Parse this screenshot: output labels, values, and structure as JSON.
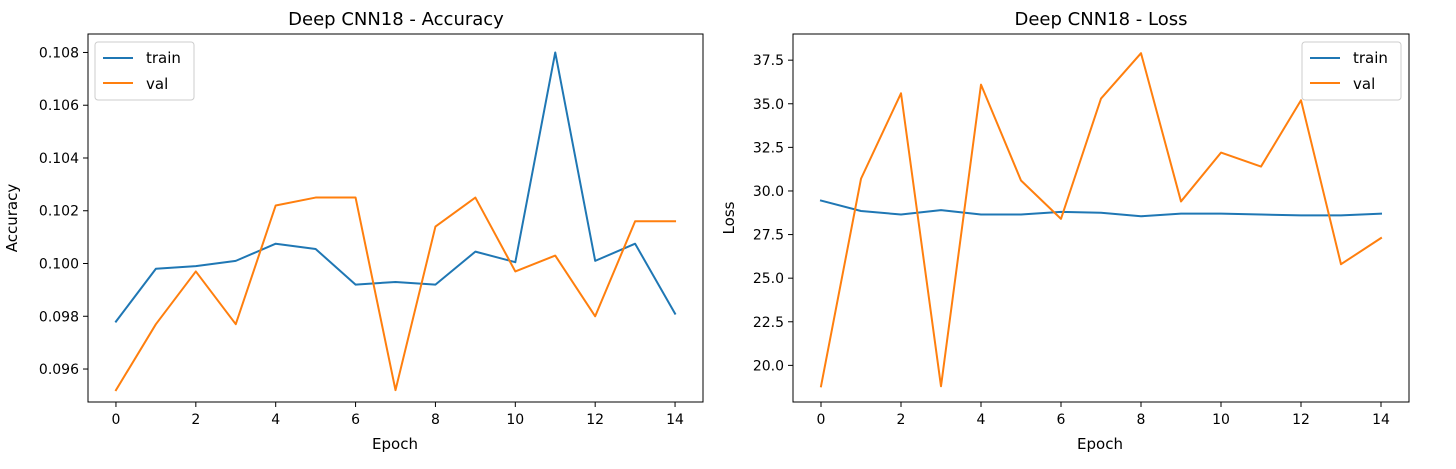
{
  "chart_data": [
    {
      "type": "line",
      "title": "Deep CNN18 - Accuracy",
      "xlabel": "Epoch",
      "ylabel": "Accuracy",
      "x": [
        0,
        1,
        2,
        3,
        4,
        5,
        6,
        7,
        8,
        9,
        10,
        11,
        12,
        13,
        14
      ],
      "xlim": [
        -0.7,
        14.7
      ],
      "ylim": [
        0.09475,
        0.1087
      ],
      "xticks": [
        0,
        2,
        4,
        6,
        8,
        10,
        12,
        14
      ],
      "xtick_labels": [
        "0",
        "2",
        "4",
        "6",
        "8",
        "10",
        "12",
        "14"
      ],
      "yticks": [
        0.096,
        0.098,
        0.1,
        0.102,
        0.104,
        0.106,
        0.108
      ],
      "ytick_labels": [
        "0.096",
        "0.098",
        "0.100",
        "0.102",
        "0.104",
        "0.106",
        "0.108"
      ],
      "grid": false,
      "legend_position": "upper left",
      "series": [
        {
          "name": "train",
          "color": "#1f77b4",
          "values": [
            0.0978,
            0.0998,
            0.0999,
            0.1001,
            0.10075,
            0.10055,
            0.0992,
            0.0993,
            0.0992,
            0.10045,
            0.10005,
            0.108,
            0.1001,
            0.10075,
            0.0981
          ]
        },
        {
          "name": "val",
          "color": "#ff7f0e",
          "values": [
            0.0952,
            0.0977,
            0.0997,
            0.0977,
            0.1022,
            0.1025,
            0.1025,
            0.0952,
            0.1014,
            0.1025,
            0.0997,
            0.1003,
            0.098,
            0.1016,
            0.1016
          ]
        }
      ]
    },
    {
      "type": "line",
      "title": "Deep CNN18 - Loss",
      "xlabel": "Epoch",
      "ylabel": "Loss",
      "x": [
        0,
        1,
        2,
        3,
        4,
        5,
        6,
        7,
        8,
        9,
        10,
        11,
        12,
        13,
        14
      ],
      "xlim": [
        -0.7,
        14.7
      ],
      "ylim": [
        17.9,
        39.0
      ],
      "xticks": [
        0,
        2,
        4,
        6,
        8,
        10,
        12,
        14
      ],
      "xtick_labels": [
        "0",
        "2",
        "4",
        "6",
        "8",
        "10",
        "12",
        "14"
      ],
      "yticks": [
        20.0,
        22.5,
        25.0,
        27.5,
        30.0,
        32.5,
        35.0,
        37.5
      ],
      "ytick_labels": [
        "20.0",
        "22.5",
        "25.0",
        "27.5",
        "30.0",
        "32.5",
        "35.0",
        "37.5"
      ],
      "grid": false,
      "legend_position": "upper right",
      "series": [
        {
          "name": "train",
          "color": "#1f77b4",
          "values": [
            29.45,
            28.85,
            28.65,
            28.9,
            28.65,
            28.65,
            28.8,
            28.75,
            28.55,
            28.7,
            28.7,
            28.65,
            28.6,
            28.6,
            28.7
          ]
        },
        {
          "name": "val",
          "color": "#ff7f0e",
          "values": [
            18.8,
            30.7,
            35.6,
            18.8,
            36.1,
            30.6,
            28.4,
            35.3,
            37.9,
            29.4,
            32.2,
            31.4,
            35.2,
            25.8,
            27.3
          ]
        }
      ]
    }
  ]
}
